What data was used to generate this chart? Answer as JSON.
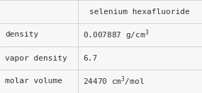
{
  "title": "selenium hexafluoride",
  "rows": [
    {
      "label": "density",
      "value": "0.007887 g/cm$^{3}$",
      "has_super": true
    },
    {
      "label": "vapor density",
      "value": "6.7",
      "has_super": false
    },
    {
      "label": "molar volume",
      "value": "24470 cm$^{3}$/mol",
      "has_super": true
    }
  ],
  "col_split": 0.385,
  "background_color": "#f7f7f7",
  "line_color": "#cccccc",
  "text_color": "#303030",
  "font_family": "monospace",
  "title_fontsize": 8.0,
  "label_fontsize": 8.0,
  "value_fontsize": 8.0
}
